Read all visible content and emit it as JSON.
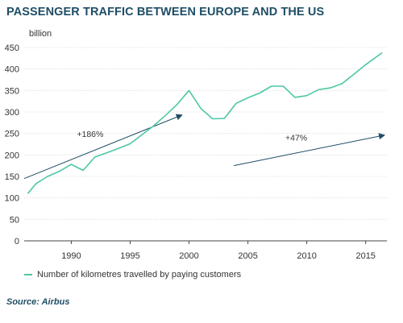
{
  "title": "PASSENGER TRAFFIC BETWEEN EUROPE AND THE US",
  "source": "Source: Airbus",
  "colors": {
    "series": "#4dc7a6",
    "arrow": "#1f4e66",
    "title": "#1f4e66",
    "axis": "#444444"
  },
  "chart_data": {
    "type": "line",
    "ylabel": "billion",
    "xlim": [
      1986,
      2016.8
    ],
    "ylim": [
      0,
      450
    ],
    "yticks": [
      0,
      50,
      100,
      150,
      200,
      250,
      300,
      350,
      400,
      450
    ],
    "xticks": [
      1990,
      1995,
      2000,
      2005,
      2010,
      2015
    ],
    "series": [
      {
        "name": "Number of kilometres travelled by paying customers",
        "x": [
          1986.3,
          1987,
          1988,
          1989,
          1990,
          1991,
          1992,
          1993,
          1994,
          1995,
          1996,
          1997,
          1998,
          1999,
          2000,
          2001,
          2002,
          2003,
          2004,
          2005,
          2006,
          2007,
          2008,
          2009,
          2010,
          2011,
          2012,
          2013,
          2014,
          2015,
          2016.4
        ],
        "values": [
          110,
          133,
          150,
          162,
          178,
          164,
          195,
          205,
          215,
          226,
          247,
          268,
          292,
          318,
          350,
          308,
          284,
          285,
          320,
          333,
          344,
          360,
          360,
          334,
          338,
          352,
          356,
          366,
          388,
          410,
          438
        ]
      }
    ],
    "annotations": [
      {
        "label": "+186%",
        "from": [
          1986,
          145
        ],
        "to": [
          1999.4,
          293
        ]
      },
      {
        "label": "+47%",
        "from": [
          2003.8,
          175
        ],
        "to": [
          2016.6,
          246
        ]
      }
    ],
    "grid": "horizontal"
  }
}
